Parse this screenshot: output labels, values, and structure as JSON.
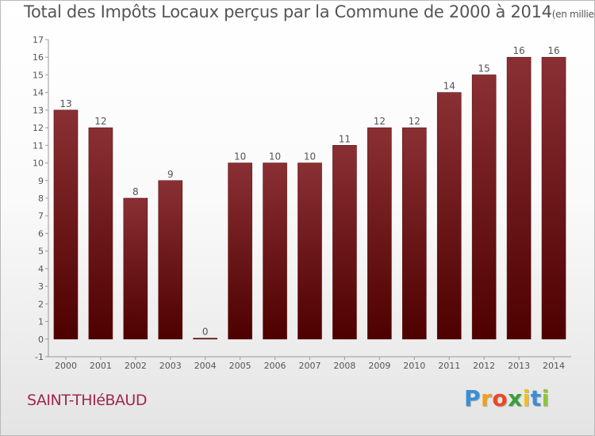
{
  "chart_data": {
    "type": "bar",
    "title": "Total des Impôts Locaux perçus par la Commune de 2000 à 2014",
    "unit": "(en milliers d'€)",
    "categories": [
      "2000",
      "2001",
      "2002",
      "2003",
      "2004",
      "2005",
      "2006",
      "2007",
      "2008",
      "2009",
      "2010",
      "2011",
      "2012",
      "2013",
      "2014"
    ],
    "values": [
      13,
      12,
      8,
      9,
      0,
      10,
      10,
      10,
      11,
      12,
      12,
      14,
      15,
      16,
      16
    ],
    "ylim": [
      -1,
      17
    ],
    "yticks": [
      -1,
      0,
      1,
      2,
      3,
      4,
      5,
      6,
      7,
      8,
      9,
      10,
      11,
      12,
      13,
      14,
      15,
      16,
      17
    ],
    "xlabel": "",
    "ylabel": "",
    "grid": false,
    "bar_color": "#7a1f22"
  },
  "commune": "SAINT-THIéBAUD",
  "logo": {
    "letters": [
      "P",
      "r",
      "o",
      "x",
      "i",
      "t",
      "i"
    ],
    "colors": [
      "#3a8fd4",
      "#f0a020",
      "#e84a2a",
      "#3aa03a",
      "#f0c020",
      "#3a8fd4",
      "#8cc63e"
    ]
  }
}
